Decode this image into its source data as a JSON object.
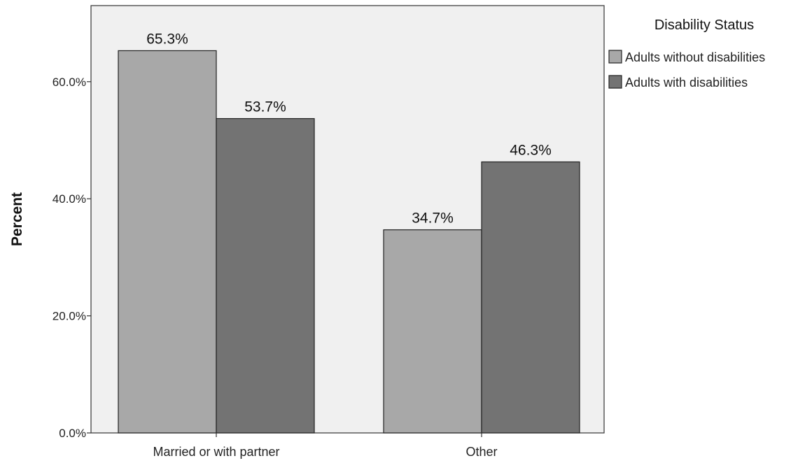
{
  "chart_data": {
    "type": "bar",
    "categories": [
      "Married or with partner",
      "Other"
    ],
    "series": [
      {
        "name": "Adults without disabilities",
        "values": [
          65.3,
          34.7
        ],
        "labels": [
          "65.3%",
          "34.7%"
        ],
        "color": "#a8a8a8"
      },
      {
        "name": "Adults with disabilities",
        "values": [
          53.7,
          46.3
        ],
        "labels": [
          "53.7%",
          "46.3%"
        ],
        "color": "#737373"
      }
    ],
    "title": "",
    "xlabel": "",
    "ylabel": "Percent",
    "ylim": [
      0,
      73
    ],
    "yticks": [
      0,
      20,
      40,
      60
    ],
    "ytick_labels": [
      "0.0%",
      "20.0%",
      "40.0%",
      "60.0%"
    ],
    "grid": false,
    "legend": {
      "title": "Disability Status",
      "placement": "right-top"
    },
    "plot_background": "#f0f0f0",
    "bar_edge_color": "#222222"
  }
}
